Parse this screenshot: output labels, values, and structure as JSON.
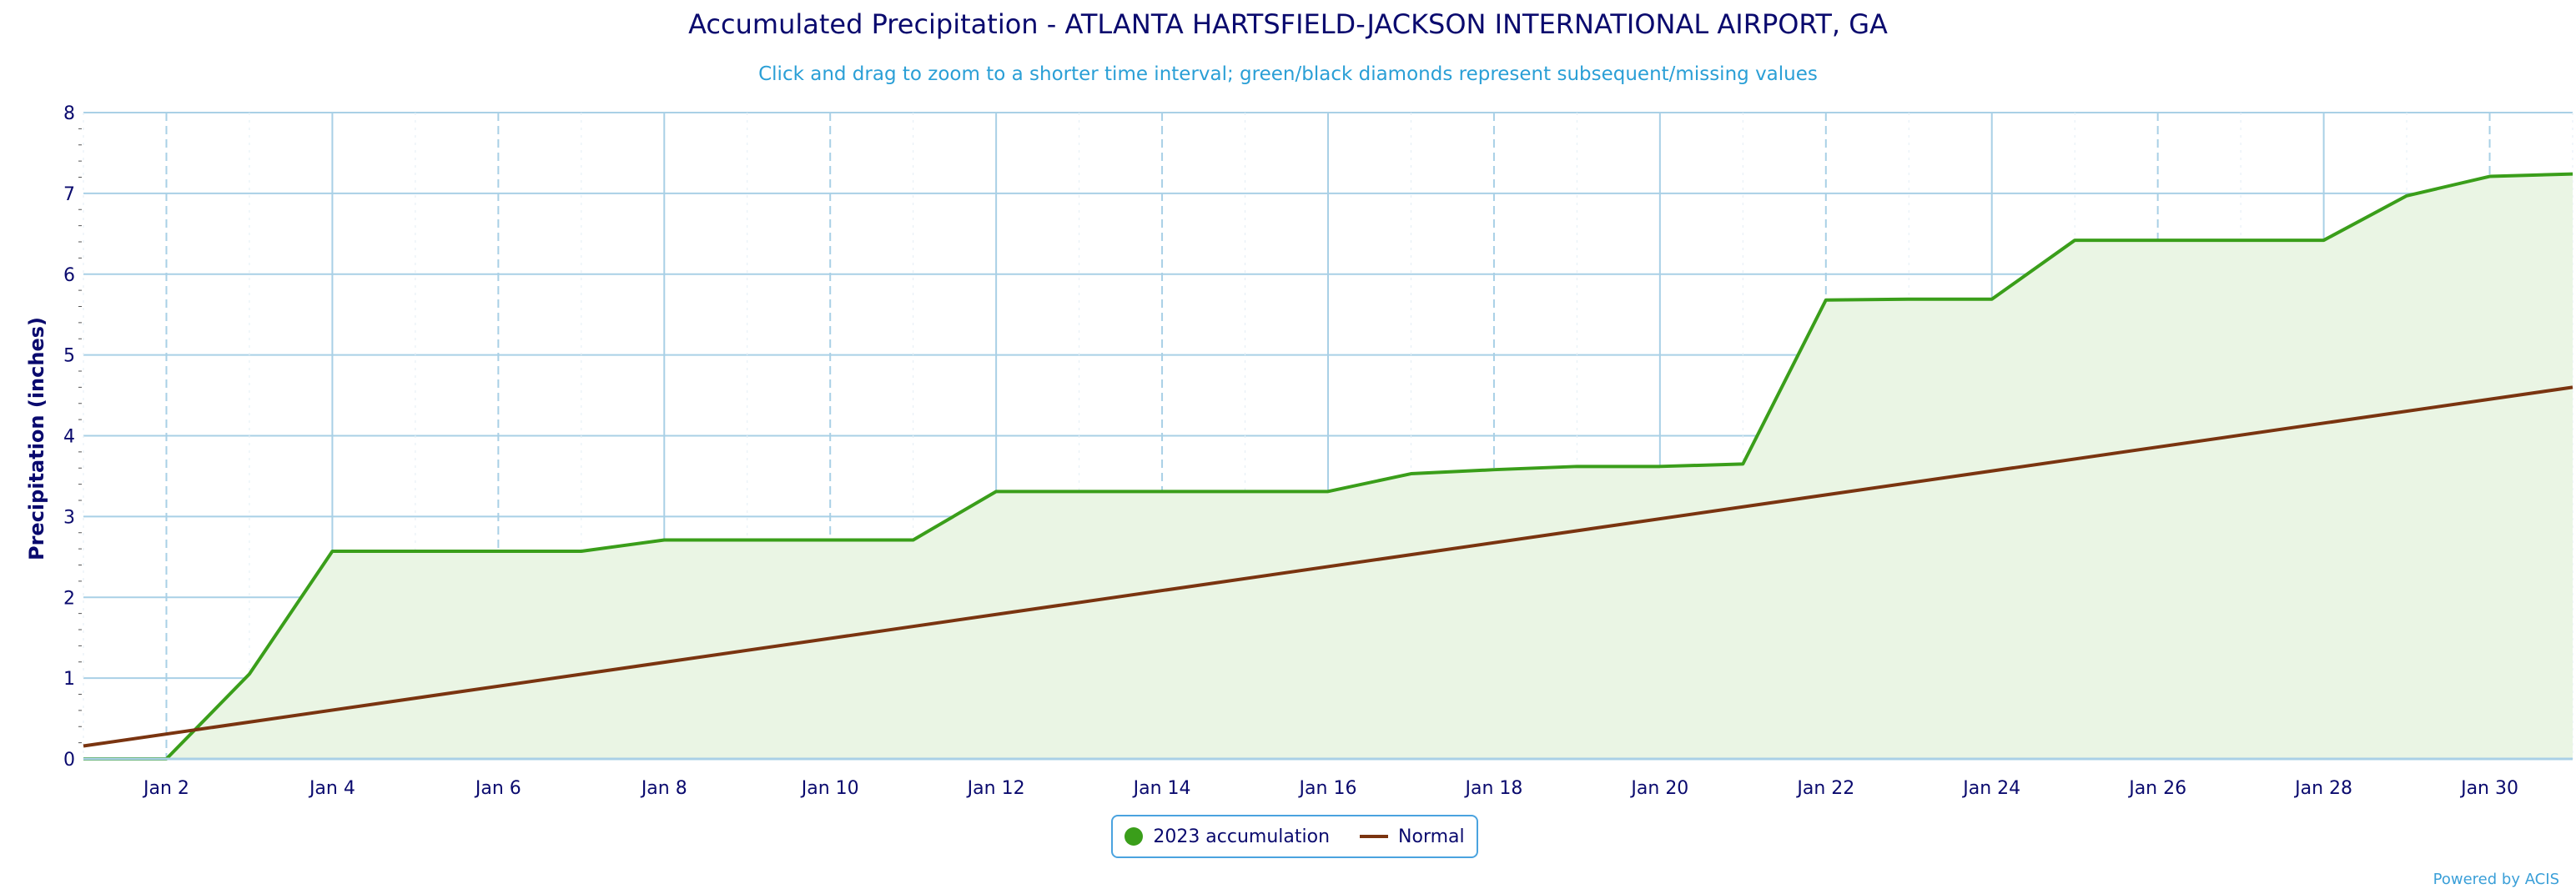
{
  "colors": {
    "accumulation": "#3a9e1a",
    "accumulation_fill": "#eaf5e4",
    "normal": "#7a3410",
    "grid": "#a9d0e6",
    "axis_text": "#0a0a6e"
  },
  "chart_data": {
    "type": "area",
    "title": "Accumulated Precipitation - ATLANTA HARTSFIELD-JACKSON INTERNATIONAL AIRPORT, GA",
    "subtitle": "Click and drag to zoom to a shorter time interval; green/black diamonds represent subsequent/missing values",
    "xlabel": "",
    "ylabel": "Precipitation (inches)",
    "ylim": [
      0,
      8
    ],
    "yticks": [
      "0",
      "1",
      "2",
      "3",
      "4",
      "5",
      "6",
      "7",
      "8"
    ],
    "x_range_days": [
      1,
      31
    ],
    "xtick_days": [
      2,
      4,
      6,
      8,
      10,
      12,
      14,
      16,
      18,
      20,
      22,
      24,
      26,
      28,
      30
    ],
    "xtick_labels": [
      "Jan 2",
      "Jan 4",
      "Jan 6",
      "Jan 8",
      "Jan 10",
      "Jan 12",
      "Jan 14",
      "Jan 16",
      "Jan 18",
      "Jan 20",
      "Jan 22",
      "Jan 24",
      "Jan 26",
      "Jan 28",
      "Jan 30"
    ],
    "grid": true,
    "legend_position": "bottom-center",
    "series": [
      {
        "name": "2023 accumulation",
        "style": "line-with-area",
        "x": [
          1,
          2,
          3,
          4,
          5,
          6,
          7,
          8,
          9,
          10,
          11,
          12,
          13,
          14,
          15,
          16,
          17,
          18,
          19,
          20,
          21,
          22,
          23,
          24,
          25,
          26,
          27,
          28,
          29,
          30,
          31
        ],
        "y": [
          0.0,
          0.0,
          1.05,
          2.57,
          2.57,
          2.57,
          2.57,
          2.71,
          2.71,
          2.71,
          2.71,
          3.31,
          3.31,
          3.31,
          3.31,
          3.31,
          3.53,
          3.58,
          3.62,
          3.62,
          3.65,
          5.68,
          5.69,
          5.69,
          6.42,
          6.42,
          6.42,
          6.42,
          6.97,
          7.21,
          7.24
        ]
      },
      {
        "name": "Normal",
        "style": "line",
        "x": [
          1,
          31
        ],
        "y": [
          0.16,
          4.6
        ]
      }
    ]
  },
  "legend": {
    "items": [
      {
        "label": "2023 accumulation"
      },
      {
        "label": "Normal"
      }
    ]
  },
  "credit": "Powered by ACIS"
}
